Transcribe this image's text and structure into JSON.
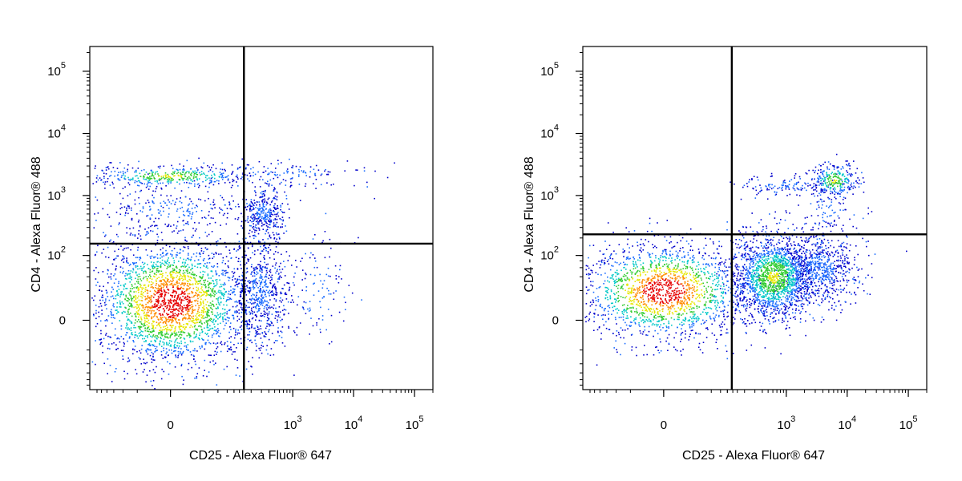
{
  "colors": {
    "axis": "#000000",
    "gate": "#000000",
    "density_scale": [
      "#0000cc",
      "#1a6cff",
      "#00c8c8",
      "#33cc33",
      "#e6e600",
      "#ff8c00",
      "#e60000"
    ]
  },
  "chart_data": [
    {
      "type": "scatter",
      "subtype": "flow-cytometry-density-dot-plot",
      "title": "",
      "xlabel": "CD25 - Alexa Fluor® 647",
      "ylabel": "CD4 - Alexa Fluor® 488",
      "x_scale": "biexponential",
      "y_scale": "biexponential",
      "xlim": [
        -200,
        200000
      ],
      "ylim": [
        -120,
        250000
      ],
      "x_ticks": [
        {
          "value": 0,
          "base": "0",
          "exp": ""
        },
        {
          "value": 1000,
          "base": "10",
          "exp": "3"
        },
        {
          "value": 10000,
          "base": "10",
          "exp": "4"
        },
        {
          "value": 100000,
          "base": "10",
          "exp": "5"
        }
      ],
      "y_ticks": [
        {
          "value": 0,
          "base": "0",
          "exp": ""
        },
        {
          "value": 100,
          "base": "10",
          "exp": "2"
        },
        {
          "value": 1000,
          "base": "10",
          "exp": "3"
        },
        {
          "value": 10000,
          "base": "10",
          "exp": "4"
        },
        {
          "value": 100000,
          "base": "10",
          "exp": "5"
        }
      ],
      "quadrant_gate": {
        "x": 150,
        "y": 160
      },
      "populations": [
        {
          "x_center": 0,
          "y_center": 10,
          "x_spread": 35,
          "y_spread": 45,
          "count": 2600,
          "density": "high"
        },
        {
          "x_center": 0,
          "y_center": 2100,
          "x_spread": 45,
          "y_spread": 500,
          "count": 420,
          "density": "medium"
        },
        {
          "x_center": 900,
          "y_center": 2300,
          "x_spread": 2200,
          "y_spread": 600,
          "count": 120,
          "density": "low"
        },
        {
          "x_center": 0,
          "y_center": 600,
          "x_spread": 50,
          "y_spread": 350,
          "count": 230,
          "density": "low"
        },
        {
          "x_center": 320,
          "y_center": 550,
          "x_spread": 150,
          "y_spread": 300,
          "count": 320,
          "density": "low"
        },
        {
          "x_center": 280,
          "y_center": 20,
          "x_spread": 200,
          "y_spread": 60,
          "count": 600,
          "density": "low"
        },
        {
          "x_center": 2500,
          "y_center": 20,
          "x_spread": 3000,
          "y_spread": 60,
          "count": 120,
          "density": "low"
        }
      ]
    },
    {
      "type": "scatter",
      "subtype": "flow-cytometry-density-dot-plot",
      "title": "",
      "xlabel": "CD25 - Alexa Fluor® 647",
      "ylabel": "CD4 - Alexa Fluor® 488",
      "x_scale": "biexponential",
      "y_scale": "biexponential",
      "xlim": [
        -200,
        200000
      ],
      "ylim": [
        -120,
        250000
      ],
      "x_ticks": [
        {
          "value": 0,
          "base": "0",
          "exp": ""
        },
        {
          "value": 1000,
          "base": "10",
          "exp": "3"
        },
        {
          "value": 10000,
          "base": "10",
          "exp": "4"
        },
        {
          "value": 100000,
          "base": "10",
          "exp": "5"
        }
      ],
      "y_ticks": [
        {
          "value": 0,
          "base": "0",
          "exp": ""
        },
        {
          "value": 100,
          "base": "10",
          "exp": "2"
        },
        {
          "value": 1000,
          "base": "10",
          "exp": "3"
        },
        {
          "value": 10000,
          "base": "10",
          "exp": "4"
        },
        {
          "value": 100000,
          "base": "10",
          "exp": "5"
        }
      ],
      "quadrant_gate": {
        "x": 120,
        "y": 230
      },
      "populations": [
        {
          "x_center": 0,
          "y_center": 20,
          "x_spread": 40,
          "y_spread": 45,
          "count": 1800,
          "density": "high"
        },
        {
          "x_center": 600,
          "y_center": 40,
          "x_spread": 700,
          "y_spread": 60,
          "count": 1700,
          "density": "medium"
        },
        {
          "x_center": 3500,
          "y_center": 60,
          "x_spread": 4000,
          "y_spread": 70,
          "count": 700,
          "density": "low"
        },
        {
          "x_center": 6000,
          "y_center": 1800,
          "x_spread": 3500,
          "y_spread": 700,
          "count": 260,
          "density": "medium"
        },
        {
          "x_center": 900,
          "y_center": 1500,
          "x_spread": 1800,
          "y_spread": 300,
          "count": 140,
          "density": "low"
        },
        {
          "x_center": 5000,
          "y_center": 600,
          "x_spread": 5000,
          "y_spread": 400,
          "count": 90,
          "density": "low"
        }
      ]
    }
  ]
}
